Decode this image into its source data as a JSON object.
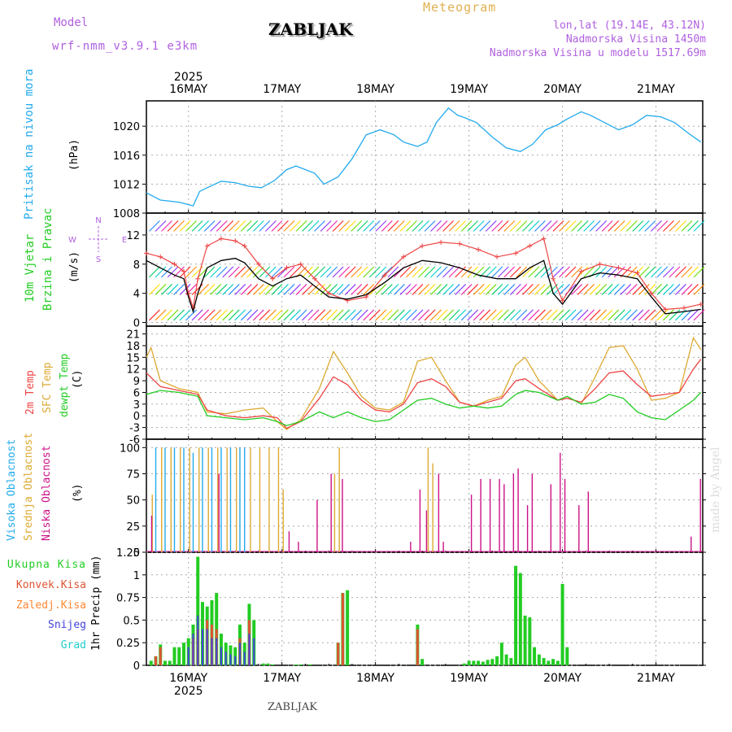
{
  "header": {
    "model_label": "Model",
    "model_name": "wrf-nmm_v3.9.1  e3km",
    "station": "ZABLJAK",
    "product": "Meteogram",
    "coords": "lon,lat (19.14E, 43.12N)",
    "elevation": "Nadmorska Visina 1450m",
    "model_elevation": "Nadmorska Visina u modelu 1517.69m",
    "footer_station": "ZABLJAK",
    "watermark": "made by Angel"
  },
  "colors": {
    "model": "#b060e0",
    "station": "#000000",
    "product": "#e0b050",
    "pressure": "#22aaee",
    "wind_speed": "#000000",
    "gust": "#ee4444",
    "t2m": "#ee4444",
    "sfc": "#ddaa33",
    "dew": "#22cc22",
    "high_cloud": "#22aaee",
    "mid_cloud": "#ddaa33",
    "low_cloud": "#cc1188",
    "total": "#22cc22",
    "conv": "#dd5533",
    "frozen": "#ff8833",
    "snow": "#4444dd",
    "graupel": "#22cccc",
    "grid": "#aaaaaa"
  },
  "chart_data": [
    {
      "id": "pressure",
      "type": "line",
      "title": "Pritisak na nivou mora",
      "ylabel": "(hPa)",
      "ylim": [
        1008,
        1023.5
      ],
      "yticks": [
        1008,
        1012,
        1016,
        1020
      ],
      "x_start": 15.55,
      "x_end": 21.5,
      "dates": [
        "16MAY",
        "17MAY",
        "18MAY",
        "19MAY",
        "20MAY",
        "21MAY"
      ],
      "year": "2025",
      "series": [
        {
          "name": "MSLP",
          "x": [
            15.55,
            15.7,
            15.9,
            16.05,
            16.12,
            16.2,
            16.35,
            16.5,
            16.65,
            16.78,
            16.92,
            17.05,
            17.15,
            17.35,
            17.45,
            17.6,
            17.75,
            17.9,
            18.05,
            18.2,
            18.3,
            18.45,
            18.55,
            18.65,
            18.78,
            18.88,
            18.95,
            19.08,
            19.25,
            19.4,
            19.55,
            19.68,
            19.82,
            19.95,
            20.05,
            20.2,
            20.3,
            20.45,
            20.6,
            20.75,
            20.9,
            21.05,
            21.2,
            21.35,
            21.48
          ],
          "values": [
            1010.8,
            1009.8,
            1009.5,
            1009.0,
            1011.0,
            1011.5,
            1012.4,
            1012.2,
            1011.7,
            1011.5,
            1012.5,
            1014.0,
            1014.5,
            1013.5,
            1012.0,
            1013.0,
            1015.5,
            1018.8,
            1019.5,
            1018.8,
            1017.8,
            1017.2,
            1017.8,
            1020.5,
            1022.5,
            1021.5,
            1021.2,
            1020.5,
            1018.5,
            1017.0,
            1016.5,
            1017.5,
            1019.5,
            1020.2,
            1021.0,
            1022.0,
            1021.5,
            1020.5,
            1019.5,
            1020.2,
            1021.5,
            1021.3,
            1020.5,
            1019.0,
            1017.8
          ]
        }
      ]
    },
    {
      "id": "wind",
      "type": "line",
      "title": "10m Vjetar",
      "subtitle": "Brzina i Pravac",
      "ylabel": "(m/s)",
      "ylim": [
        -0.5,
        15
      ],
      "yticks": [
        0,
        4,
        8,
        12
      ],
      "compass": {
        "north": "N",
        "south": "S",
        "east": "E",
        "west": "W"
      },
      "series": [
        {
          "name": "speed",
          "x": [
            15.55,
            15.7,
            15.85,
            15.95,
            16.0,
            16.05,
            16.1,
            16.2,
            16.35,
            16.5,
            16.6,
            16.75,
            16.9,
            17.05,
            17.2,
            17.35,
            17.5,
            17.7,
            17.9,
            18.1,
            18.3,
            18.5,
            18.7,
            18.9,
            19.1,
            19.3,
            19.5,
            19.65,
            19.8,
            19.9,
            20.0,
            20.2,
            20.4,
            20.6,
            20.8,
            20.95,
            21.1,
            21.3,
            21.48
          ],
          "values": [
            8.5,
            7.5,
            6.5,
            6.0,
            3.5,
            1.5,
            4.0,
            7.5,
            8.5,
            8.8,
            8.2,
            6.0,
            5.0,
            6.0,
            6.5,
            5.0,
            3.5,
            3.2,
            3.8,
            5.5,
            7.5,
            8.5,
            8.2,
            7.5,
            6.5,
            6.0,
            6.0,
            7.5,
            8.5,
            4.0,
            2.5,
            6.0,
            6.8,
            6.5,
            6.0,
            3.5,
            1.2,
            1.5,
            1.8
          ]
        },
        {
          "name": "gust",
          "x": [
            15.55,
            15.7,
            15.85,
            15.95,
            16.0,
            16.05,
            16.1,
            16.2,
            16.35,
            16.5,
            16.6,
            16.75,
            16.9,
            17.05,
            17.2,
            17.35,
            17.5,
            17.7,
            17.9,
            18.1,
            18.3,
            18.5,
            18.7,
            18.9,
            19.1,
            19.3,
            19.5,
            19.65,
            19.8,
            19.9,
            20.0,
            20.2,
            20.4,
            20.6,
            20.8,
            20.95,
            21.1,
            21.3,
            21.48
          ],
          "values": [
            9.5,
            9.0,
            8.0,
            7.0,
            4.0,
            2.0,
            6.0,
            10.5,
            11.5,
            11.2,
            10.5,
            8.0,
            6.0,
            7.5,
            8.0,
            6.0,
            4.0,
            3.0,
            3.5,
            6.5,
            9.0,
            10.5,
            11.0,
            10.8,
            10.0,
            9.0,
            9.5,
            10.5,
            11.5,
            6.0,
            3.0,
            7.0,
            8.0,
            7.5,
            6.8,
            4.0,
            1.8,
            2.0,
            2.5
          ]
        }
      ]
    },
    {
      "id": "temperature",
      "type": "line",
      "labels": [
        "2m Temp",
        "SFC Temp",
        "dewpt Temp"
      ],
      "ylabel": "(C)",
      "ylim": [
        -6,
        23
      ],
      "yticks": [
        -6,
        -3,
        0,
        3,
        6,
        9,
        12,
        15,
        18,
        21
      ],
      "series": [
        {
          "name": "2m Temp",
          "x": [
            15.55,
            15.7,
            15.9,
            16.1,
            16.2,
            16.4,
            16.6,
            16.8,
            16.95,
            17.05,
            17.2,
            17.4,
            17.55,
            17.7,
            17.85,
            18.0,
            18.15,
            18.3,
            18.45,
            18.6,
            18.75,
            18.9,
            19.05,
            19.2,
            19.35,
            19.5,
            19.6,
            19.75,
            19.95,
            20.05,
            20.2,
            20.35,
            20.5,
            20.65,
            20.8,
            20.95,
            21.1,
            21.25,
            21.4,
            21.48
          ],
          "values": [
            11,
            7.5,
            6.5,
            5.5,
            1.5,
            0,
            -0.5,
            0,
            -0.5,
            -3.2,
            -1.5,
            4.5,
            10,
            8,
            4,
            1.5,
            1,
            3,
            8.5,
            9.5,
            7.5,
            3.5,
            2.5,
            3.5,
            4.5,
            9,
            9.5,
            7,
            4,
            4.5,
            3.5,
            7,
            11,
            11.5,
            8,
            5,
            5.5,
            6,
            12,
            14.5
          ]
        },
        {
          "name": "SFC Temp",
          "x": [
            15.55,
            15.6,
            15.7,
            15.9,
            16.1,
            16.2,
            16.4,
            16.6,
            16.8,
            16.95,
            17.05,
            17.2,
            17.4,
            17.55,
            17.7,
            17.85,
            18.0,
            18.15,
            18.3,
            18.45,
            18.6,
            18.75,
            18.9,
            19.05,
            19.2,
            19.35,
            19.5,
            19.6,
            19.75,
            19.95,
            20.05,
            20.2,
            20.35,
            20.5,
            20.65,
            20.8,
            20.95,
            21.1,
            21.25,
            21.4,
            21.48
          ],
          "values": [
            15,
            17.5,
            9,
            7,
            6,
            1,
            0.5,
            1.5,
            2,
            -1.5,
            -3.5,
            -1,
            7,
            16.5,
            11,
            5,
            2,
            1.5,
            3.5,
            14,
            15,
            9,
            3.5,
            2.5,
            4,
            5,
            13,
            15,
            9,
            4,
            5,
            3,
            10,
            17.5,
            18,
            12,
            4,
            4.5,
            6,
            20,
            17
          ]
        },
        {
          "name": "dewpt Temp",
          "x": [
            15.55,
            15.7,
            15.9,
            16.1,
            16.2,
            16.4,
            16.6,
            16.8,
            16.95,
            17.05,
            17.2,
            17.4,
            17.55,
            17.7,
            17.85,
            18.0,
            18.15,
            18.3,
            18.45,
            18.6,
            18.75,
            18.9,
            19.05,
            19.2,
            19.35,
            19.5,
            19.6,
            19.75,
            19.95,
            20.05,
            20.2,
            20.35,
            20.5,
            20.65,
            20.8,
            20.95,
            21.1,
            21.25,
            21.4,
            21.48
          ],
          "values": [
            5.5,
            6.5,
            6,
            5,
            0,
            -0.5,
            -1,
            -0.5,
            -1.5,
            -2.5,
            -1.5,
            1,
            -0.5,
            1,
            -0.5,
            -1.5,
            -1,
            1.5,
            4,
            4.5,
            3,
            2,
            2.5,
            2,
            2.5,
            5.5,
            6.5,
            6,
            4,
            5,
            3,
            3.5,
            5.5,
            4.5,
            1,
            -0.5,
            -1,
            1.5,
            4,
            6
          ]
        }
      ]
    },
    {
      "id": "clouds",
      "type": "bar",
      "labels": [
        "Visoka Oblacnost",
        "Srednja Oblacnost",
        "Niska Oblacnost"
      ],
      "ylabel": "(%)",
      "ylim": [
        0,
        108
      ],
      "yticks": [
        0,
        25,
        50,
        75,
        100
      ],
      "series": [
        {
          "name": "high",
          "x": [
            15.65,
            15.75,
            15.85,
            15.95,
            16.05,
            16.15,
            16.25,
            16.35,
            16.45,
            16.55,
            16.6
          ],
          "values": [
            100,
            100,
            100,
            100,
            95,
            100,
            100,
            100,
            100,
            100,
            100
          ]
        },
        {
          "name": "mid",
          "x": [
            15.6,
            15.7,
            15.8,
            15.9,
            16.0,
            16.1,
            16.2,
            16.3,
            16.4,
            16.5,
            16.65,
            16.75,
            16.85,
            16.95,
            17.0,
            17.55,
            17.6,
            18.55,
            18.6
          ],
          "values": [
            55,
            100,
            100,
            100,
            100,
            100,
            100,
            100,
            100,
            100,
            100,
            100,
            100,
            100,
            60,
            75,
            100,
            100,
            85
          ]
        },
        {
          "name": "low",
          "x": [
            15.58,
            16.3,
            17.05,
            17.15,
            17.35,
            17.5,
            17.62,
            18.35,
            18.45,
            18.52,
            18.65,
            18.7,
            19.0,
            19.1,
            19.2,
            19.3,
            19.35,
            19.45,
            19.5,
            19.6,
            19.65,
            19.85,
            19.95,
            20.0,
            20.15,
            20.25,
            21.35,
            21.45
          ],
          "values": [
            35,
            75,
            20,
            10,
            50,
            75,
            70,
            10,
            60,
            40,
            75,
            10,
            55,
            70,
            70,
            70,
            65,
            75,
            80,
            45,
            75,
            65,
            95,
            70,
            45,
            58,
            15,
            70
          ]
        }
      ]
    },
    {
      "id": "precip",
      "type": "bar",
      "labels": [
        "Ukupna Kisa",
        "Konvek.Kisa",
        "Zaledj.Kisa",
        "Snijeg",
        "Grad"
      ],
      "ylabel": "1hr Precip (mm)",
      "ylim": [
        0,
        1.25
      ],
      "yticks": [
        0,
        0.25,
        0.5,
        0.75,
        1,
        1.25
      ],
      "series": [
        {
          "name": "total",
          "x": [
            15.6,
            15.65,
            15.7,
            15.75,
            15.8,
            15.85,
            15.9,
            15.95,
            16.0,
            16.05,
            16.1,
            16.15,
            16.2,
            16.25,
            16.3,
            16.35,
            16.4,
            16.45,
            16.5,
            16.55,
            16.6,
            16.65,
            16.7,
            16.8,
            16.85,
            16.9,
            17.15,
            17.2,
            17.3,
            17.6,
            17.65,
            17.7,
            18.45,
            18.5,
            18.95,
            19.0,
            19.05,
            19.1,
            19.15,
            19.2,
            19.25,
            19.3,
            19.35,
            19.4,
            19.45,
            19.5,
            19.55,
            19.6,
            19.65,
            19.7,
            19.75,
            19.8,
            19.85,
            19.9,
            19.95,
            20.0,
            20.05
          ],
          "values": [
            0.05,
            0.1,
            0.23,
            0.05,
            0.05,
            0.2,
            0.2,
            0.25,
            0.3,
            0.45,
            1.2,
            0.7,
            0.65,
            0.72,
            0.8,
            0.35,
            0.25,
            0.22,
            0.2,
            0.45,
            0.25,
            0.68,
            0.5,
            0.02,
            0.02,
            0.01,
            0.01,
            0.01,
            0.01,
            0.25,
            0.8,
            0.83,
            0.45,
            0.07,
            0.02,
            0.05,
            0.05,
            0.05,
            0.04,
            0.06,
            0.07,
            0.1,
            0.25,
            0.12,
            0.08,
            1.1,
            1.02,
            0.55,
            0.53,
            0.2,
            0.12,
            0.08,
            0.05,
            0.07,
            0.05,
            0.9,
            0.2
          ]
        },
        {
          "name": "conv",
          "x": [
            15.65,
            15.7,
            16.05,
            16.1,
            16.2,
            16.25,
            16.3,
            16.55,
            16.65,
            17.6,
            17.65,
            18.45
          ],
          "values": [
            0.1,
            0.2,
            0.3,
            0.4,
            0.5,
            0.45,
            0.4,
            0.3,
            0.5,
            0.25,
            0.8,
            0.4
          ]
        },
        {
          "name": "snow",
          "x": [
            16.0,
            16.05,
            16.1,
            16.15,
            16.2,
            16.25,
            16.3,
            16.35,
            16.4,
            16.45,
            16.5,
            16.55,
            16.6,
            16.65,
            16.7
          ],
          "values": [
            0.2,
            0.35,
            0.55,
            0.4,
            0.4,
            0.3,
            0.3,
            0.2,
            0.15,
            0.12,
            0.1,
            0.25,
            0.15,
            0.35,
            0.3
          ]
        }
      ]
    }
  ]
}
